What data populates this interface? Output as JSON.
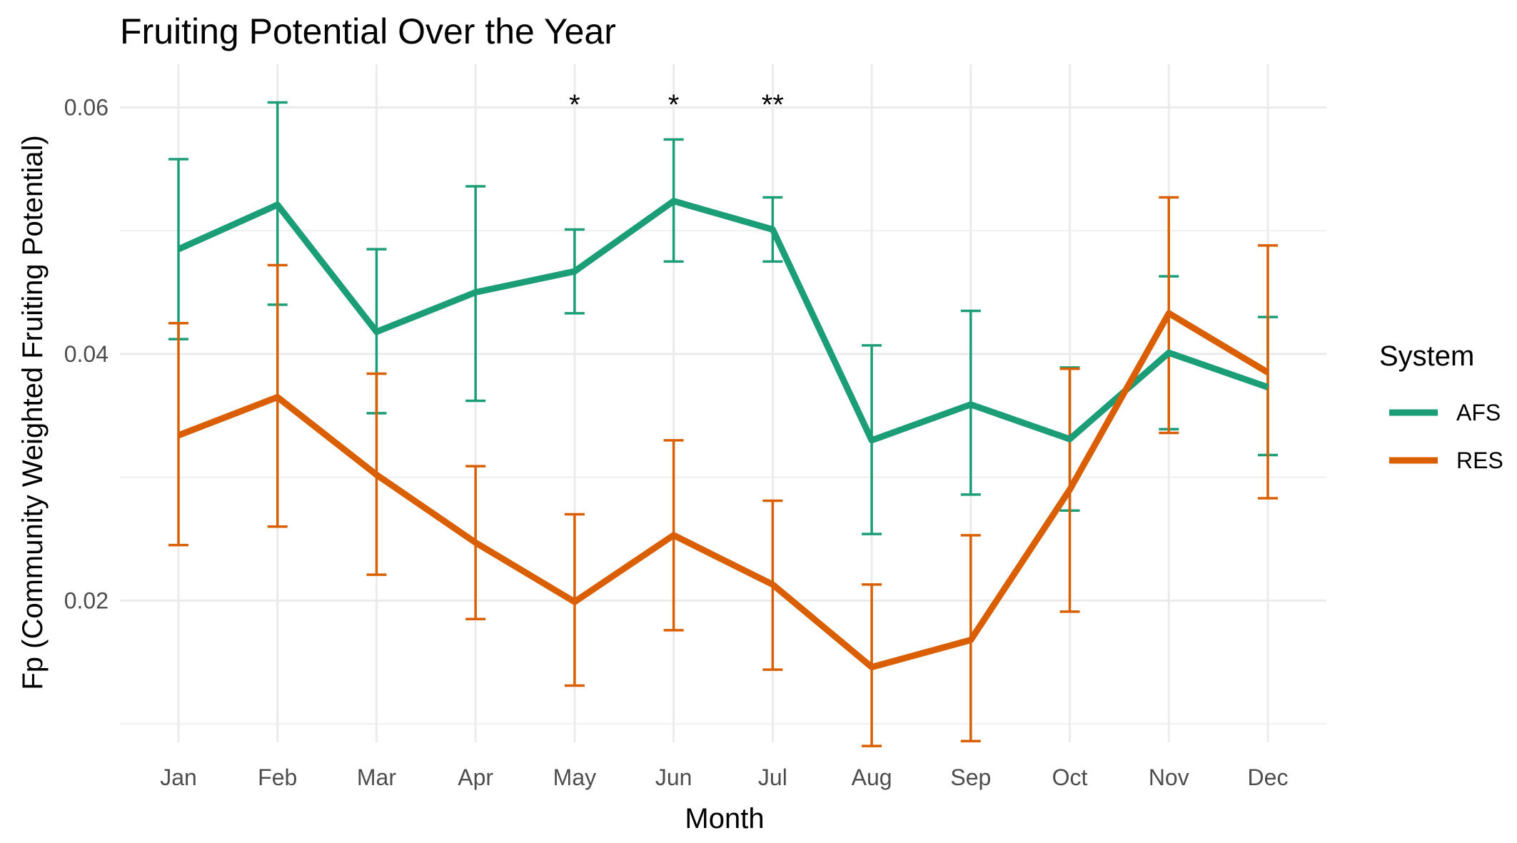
{
  "chart_data": {
    "type": "line",
    "title": "Fruiting Potential Over the Year",
    "xlabel": "Month",
    "ylabel": "Fp (Community Weighted Fruiting Potential)",
    "categories": [
      "Jan",
      "Feb",
      "Mar",
      "Apr",
      "May",
      "Jun",
      "Jul",
      "Aug",
      "Sep",
      "Oct",
      "Nov",
      "Dec"
    ],
    "ylim": [
      0.0085,
      0.0635
    ],
    "yticks": [
      0.02,
      0.04,
      0.06
    ],
    "ytick_labels": [
      "0.02",
      "0.04",
      "0.06"
    ],
    "grid": true,
    "legend": {
      "title": "System",
      "position": "right"
    },
    "series": [
      {
        "name": "AFS",
        "color": "#1b9e77",
        "values": [
          0.0485,
          0.0521,
          0.0418,
          0.045,
          0.0467,
          0.0524,
          0.0501,
          0.033,
          0.0359,
          0.0331,
          0.0401,
          0.0373
        ],
        "lower": [
          0.0412,
          0.044,
          0.0352,
          0.0362,
          0.0433,
          0.0475,
          0.0475,
          0.0254,
          0.0286,
          0.0273,
          0.0339,
          0.0318
        ],
        "upper": [
          0.0558,
          0.0604,
          0.0485,
          0.0536,
          0.0501,
          0.0574,
          0.0527,
          0.0407,
          0.0435,
          0.0389,
          0.0463,
          0.043
        ]
      },
      {
        "name": "RES",
        "color": "#d95f02",
        "values": [
          0.0334,
          0.0365,
          0.0302,
          0.0247,
          0.0199,
          0.0253,
          0.0213,
          0.0146,
          0.0168,
          0.029,
          0.0433,
          0.0385
        ],
        "lower": [
          0.0245,
          0.026,
          0.0221,
          0.0185,
          0.0131,
          0.0176,
          0.0144,
          0.0082,
          0.0086,
          0.0191,
          0.0336,
          0.0283
        ],
        "upper": [
          0.0425,
          0.0472,
          0.0384,
          0.0309,
          0.027,
          0.033,
          0.0281,
          0.0213,
          0.0253,
          0.0388,
          0.0527,
          0.0488
        ]
      }
    ],
    "annotations": [
      {
        "category": "May",
        "text": "*",
        "y": 0.0605
      },
      {
        "category": "Jun",
        "text": "*",
        "y": 0.0605
      },
      {
        "category": "Jul",
        "text": "**",
        "y": 0.0605
      }
    ]
  }
}
